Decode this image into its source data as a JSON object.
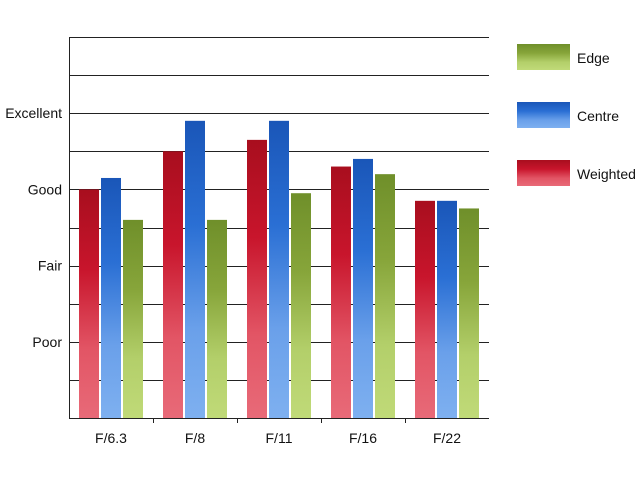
{
  "chart_data": {
    "type": "bar",
    "title": "",
    "xlabel": "",
    "ylabel": "",
    "categories": [
      "F/6.3",
      "F/8",
      "F/11",
      "F/16",
      "F/22"
    ],
    "y_ticks": [
      {
        "label": "Poor",
        "value": 2
      },
      {
        "label": "Fair",
        "value": 4
      },
      {
        "label": "Good",
        "value": 6
      },
      {
        "label": "Excellent",
        "value": 8
      }
    ],
    "ylim": [
      0,
      10
    ],
    "grid": true,
    "legend_position": "right",
    "series": [
      {
        "name": "Weighted",
        "color": "#d0102a",
        "values": [
          6.0,
          7.0,
          7.3,
          6.6,
          5.7
        ]
      },
      {
        "name": "Centre",
        "color": "#1e62c8",
        "values": [
          6.3,
          7.8,
          7.8,
          6.8,
          5.7
        ]
      },
      {
        "name": "Edge",
        "color": "#7a9a2e",
        "values": [
          5.2,
          5.2,
          5.9,
          6.4,
          5.5
        ]
      }
    ],
    "legend": [
      {
        "name": "Edge",
        "color": "#7a9a2e"
      },
      {
        "name": "Centre",
        "color": "#1e62c8"
      },
      {
        "name": "Weighted",
        "color": "#d0102a"
      }
    ]
  }
}
